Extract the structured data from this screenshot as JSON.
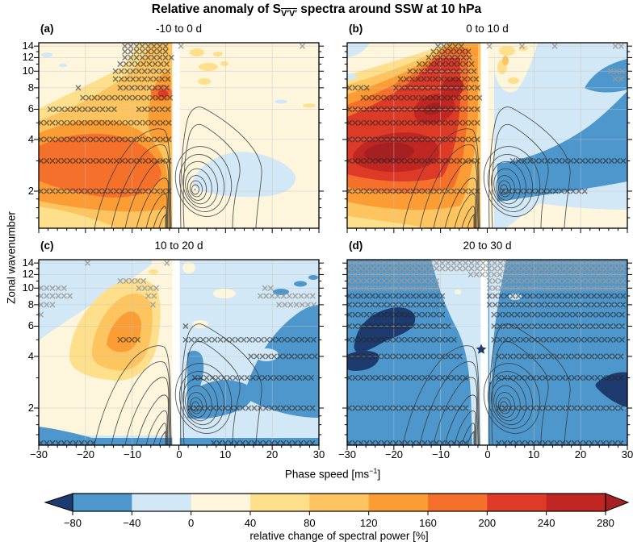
{
  "figure": {
    "title_prefix": "Relative anomaly of S",
    "title_sub": "V′V′",
    "title_suffix": " spectra around SSW at 10 hPa",
    "x_axis_label_prefix": "Phase speed [ms",
    "x_axis_label_sup": "−1",
    "x_axis_label_suffix": "]",
    "y_axis_label": "Zonal wavenumber",
    "colorbar_label": "relative change of spectral power [%]"
  },
  "chart_data": {
    "type": "filled_contour",
    "title": "Relative anomaly of S_V'V' spectra around SSW at 10 hPa",
    "overlay": "black contours: climatological wave spectrum centered near phase speed 0; gray × hatching: statistically significant anomalies; white strip near 0 ms−1",
    "x_axis": {
      "label": "Phase speed [ms−1]",
      "range": [
        -30,
        30
      ],
      "ticks": [
        -30,
        -20,
        -10,
        0,
        10,
        20,
        30
      ],
      "minor_step": 2,
      "gridlines": [
        -20,
        -10,
        10,
        20
      ]
    },
    "y_axis": {
      "label": "Zonal wavenumber",
      "scale": "log2",
      "range": [
        1.2,
        14.8
      ],
      "ticks": [
        2,
        4,
        6,
        8,
        10,
        12,
        14
      ],
      "minor_ticks": [
        1.4,
        1.6,
        1.8,
        3,
        5,
        7,
        9,
        11,
        13
      ],
      "gridlines": [
        2,
        4,
        6,
        8,
        10,
        12,
        14
      ]
    },
    "colorbar": {
      "label": "relative change of spectral power [%]",
      "levels": [
        -80,
        -40,
        0,
        40,
        80,
        120,
        160,
        200,
        240,
        280
      ],
      "colors": [
        "#4d97cc",
        "#d2e8f6",
        "#fdf6dd",
        "#fee08c",
        "#fdc45f",
        "#fb9d34",
        "#f4702b",
        "#dd3b28",
        "#c12722"
      ],
      "under_color": "#1d3b6e",
      "over_color": "#a62021"
    },
    "panels": [
      {
        "id": "a",
        "label": "(a)",
        "title": "-10 to 0 d",
        "anomaly_summary": "Strong positive anomaly (~120–200%) at westward phase speeds −30 to −5 ms−1 for wavenumbers 2–5, plume extending to wavenumber 14 near −10…0 ms−1; weak negative anomaly (to ~−40%) near +5…+25 ms−1 at wavenumbers 2–4.",
        "hatch": [
          {
            "k": 14,
            "from": -12,
            "to": -2
          },
          {
            "k": 13,
            "from": -12,
            "to": -2
          },
          {
            "k": 12,
            "from": -12,
            "to": -1
          },
          {
            "k": 11,
            "from": -13,
            "to": -1
          },
          {
            "k": 10,
            "from": -14,
            "to": -1
          },
          {
            "k": 9,
            "from": -14,
            "to": -1
          },
          {
            "k": 8,
            "from": -22,
            "to": -20
          },
          {
            "k": 8,
            "from": -13,
            "to": -1
          },
          {
            "k": 7,
            "from": -21,
            "to": -1
          },
          {
            "k": 6,
            "from": -28,
            "to": -13
          },
          {
            "k": 6,
            "from": -9,
            "to": -1
          },
          {
            "k": 5,
            "from": -30,
            "to": -1
          },
          {
            "k": 4,
            "from": -30,
            "to": -1
          },
          {
            "k": 3,
            "from": -30,
            "to": -1
          },
          {
            "k": 2,
            "from": -30,
            "to": -1
          },
          {
            "k": 14,
            "from": 0,
            "to": 2,
            "shade": "light"
          },
          {
            "k": 14,
            "from": 26,
            "to": 28,
            "shade": "light"
          }
        ]
      },
      {
        "id": "b",
        "label": "(b)",
        "title": "0 to 10 d",
        "anomaly_summary": "Positive anomaly intensified (>240%, locally >280%) at −28…−8 ms−1, wavenumbers 3–7; negative anomaly band (−40…−80%) at eastward phase speeds +3…+30 ms−1 rising from wavenumber 2 to 8.",
        "hatch": [
          {
            "k": 14,
            "from": -11,
            "to": -4
          },
          {
            "k": 13,
            "from": -12,
            "to": -3
          },
          {
            "k": 12,
            "from": -13,
            "to": -3
          },
          {
            "k": 11,
            "from": -15,
            "to": -2
          },
          {
            "k": 10,
            "from": -17,
            "to": -2
          },
          {
            "k": 9,
            "from": -19,
            "to": -1
          },
          {
            "k": 8,
            "from": -30,
            "to": -25
          },
          {
            "k": 8,
            "from": -20,
            "to": -1
          },
          {
            "k": 7,
            "from": -27,
            "to": -1
          },
          {
            "k": 6,
            "from": -30,
            "to": -1
          },
          {
            "k": 5,
            "from": -30,
            "to": -1
          },
          {
            "k": 4,
            "from": -30,
            "to": -1
          },
          {
            "k": 3,
            "from": -30,
            "to": -1
          },
          {
            "k": 3,
            "from": 5,
            "to": 30
          },
          {
            "k": 2,
            "from": -30,
            "to": -1
          },
          {
            "k": 2,
            "from": 3,
            "to": 22
          },
          {
            "k": 14,
            "from": 0,
            "to": 2,
            "shade": "light"
          },
          {
            "k": 14,
            "from": 7,
            "to": 9,
            "shade": "light"
          },
          {
            "k": 14,
            "from": 14,
            "to": 16,
            "shade": "light"
          },
          {
            "k": 14,
            "from": 27,
            "to": 30,
            "shade": "light"
          },
          {
            "k": 10,
            "from": 26,
            "to": 30,
            "shade": "light"
          },
          {
            "k": 9,
            "from": 27,
            "to": 30,
            "shade": "light"
          }
        ]
      },
      {
        "id": "c",
        "label": "(c)",
        "title": "10 to 20 d",
        "anomaly_summary": "Weakening positive anomaly (~80–160%) centered near −12 ms−1, wavenumbers 4–6; widespread negative anomaly (−40…−80%) at eastward phase speeds and at the right edge up to wavenumber 8.",
        "hatch": [
          {
            "k": 5,
            "from": -13,
            "to": -8
          },
          {
            "k": 5,
            "from": 1,
            "to": 30
          },
          {
            "k": 6,
            "from": 1,
            "to": 3
          },
          {
            "k": 4,
            "from": 15,
            "to": 30
          },
          {
            "k": 3,
            "from": 3,
            "to": 30
          },
          {
            "k": 2,
            "from": 2,
            "to": 30
          },
          {
            "k": 1.25,
            "from": -30,
            "to": -17
          },
          {
            "k": 1.25,
            "from": 7,
            "to": 30
          },
          {
            "k": 11,
            "from": -13,
            "to": -7,
            "shade": "light"
          },
          {
            "k": 10,
            "from": -30,
            "to": -24,
            "shade": "light"
          },
          {
            "k": 10,
            "from": -9,
            "to": -4,
            "shade": "light"
          },
          {
            "k": 9,
            "from": -30,
            "to": -22,
            "shade": "light"
          },
          {
            "k": 9,
            "from": -7,
            "to": -4,
            "shade": "light"
          },
          {
            "k": 8,
            "from": -30,
            "to": -26,
            "shade": "light"
          },
          {
            "k": 8,
            "from": -6,
            "to": -4,
            "shade": "light"
          },
          {
            "k": 7,
            "from": -30,
            "to": -28,
            "shade": "light"
          },
          {
            "k": 14,
            "from": -20,
            "to": -19,
            "shade": "light"
          },
          {
            "k": 14,
            "from": -3,
            "to": -2,
            "shade": "light"
          },
          {
            "k": 9,
            "from": 17,
            "to": 30,
            "shade": "light"
          },
          {
            "k": 8,
            "from": 21,
            "to": 30,
            "shade": "light"
          },
          {
            "k": 10,
            "from": 18,
            "to": 21,
            "shade": "light"
          }
        ]
      },
      {
        "id": "d",
        "label": "(d)",
        "title": "20 to 30 d",
        "anomaly_summary": "Negative anomaly (−40…−80%, locally <−80%) at almost all phase speeds and wavenumbers; minima near −20 ms−1 (wavenumbers 5–7) and +27 ms−1 (wavenumbers 2–3); weak band near −8…0 ms−1.",
        "hatch": [
          {
            "k": 9,
            "from": -30,
            "to": -9
          },
          {
            "k": 9,
            "from": 0,
            "to": 30
          },
          {
            "k": 8,
            "from": -30,
            "to": -8
          },
          {
            "k": 8,
            "from": 0,
            "to": 30
          },
          {
            "k": 7,
            "from": -30,
            "to": -8
          },
          {
            "k": 7,
            "from": 1,
            "to": 30
          },
          {
            "k": 6,
            "from": -30,
            "to": -7
          },
          {
            "k": 6,
            "from": 1,
            "to": 30
          },
          {
            "k": 5,
            "from": -30,
            "to": -6
          },
          {
            "k": 5,
            "from": 1,
            "to": 30
          },
          {
            "k": 4,
            "from": -30,
            "to": -5
          },
          {
            "k": 4,
            "from": 2,
            "to": 30
          },
          {
            "k": 3,
            "from": -30,
            "to": -4
          },
          {
            "k": 3,
            "from": 2,
            "to": 30
          },
          {
            "k": 2,
            "from": -30,
            "to": -4
          },
          {
            "k": 2,
            "from": 2,
            "to": 30
          },
          {
            "k": 1.25,
            "from": -30,
            "to": -3
          },
          {
            "k": 1.25,
            "from": 2,
            "to": 30
          },
          {
            "k": 14,
            "from": -30,
            "to": 30,
            "shade": "light"
          },
          {
            "k": 13,
            "from": -30,
            "to": 30,
            "shade": "light"
          },
          {
            "k": 12,
            "from": -30,
            "to": -11,
            "shade": "light"
          },
          {
            "k": 12,
            "from": -4,
            "to": 30,
            "shade": "light"
          },
          {
            "k": 11,
            "from": -30,
            "to": -10,
            "shade": "light"
          },
          {
            "k": 11,
            "from": 0,
            "to": 30,
            "shade": "light"
          },
          {
            "k": 10,
            "from": -30,
            "to": -10,
            "shade": "light"
          },
          {
            "k": 10,
            "from": 0,
            "to": 30,
            "shade": "light"
          }
        ]
      }
    ]
  }
}
